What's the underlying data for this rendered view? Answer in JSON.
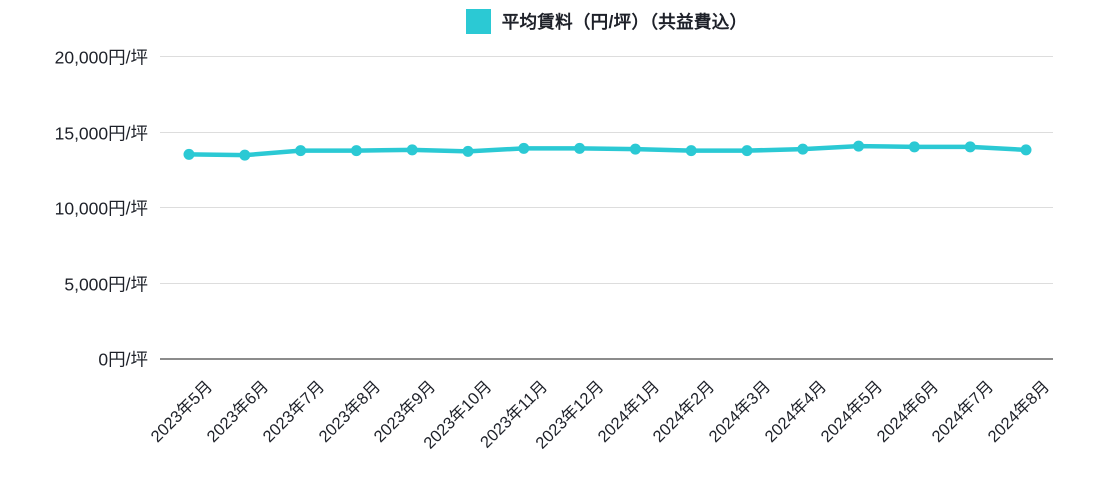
{
  "chart": {
    "legend": {
      "label": "平均賃料（円/坪）（共益費込）",
      "swatch_color": "#2BC9D4"
    },
    "colors": {
      "line": "#2BC9D4",
      "grid": "#DDDDDD",
      "axis": "#8C8C8C",
      "text": "#1E2129"
    }
  },
  "chart_data": {
    "type": "line",
    "title": "",
    "xlabel": "",
    "ylabel": "",
    "legend_position": "top",
    "grid": true,
    "ylim": [
      0,
      20000
    ],
    "yticks": [
      {
        "value": 0,
        "label": "0円/坪"
      },
      {
        "value": 5000,
        "label": "5,000円/坪"
      },
      {
        "value": 10000,
        "label": "10,000円/坪"
      },
      {
        "value": 15000,
        "label": "15,000円/坪"
      },
      {
        "value": 20000,
        "label": "20,000円/坪"
      }
    ],
    "categories": [
      "2023年5月",
      "2023年6月",
      "2023年7月",
      "2023年8月",
      "2023年9月",
      "2023年10月",
      "2023年11月",
      "2023年12月",
      "2024年1月",
      "2024年2月",
      "2024年3月",
      "2024年4月",
      "2024年5月",
      "2024年6月",
      "2024年7月",
      "2024年8月"
    ],
    "series": [
      {
        "name": "平均賃料（円/坪）（共益費込）",
        "color": "#2BC9D4",
        "values": [
          13550,
          13500,
          13800,
          13800,
          13850,
          13750,
          13950,
          13950,
          13900,
          13800,
          13800,
          13900,
          14100,
          14050,
          14050,
          13850
        ]
      }
    ]
  }
}
